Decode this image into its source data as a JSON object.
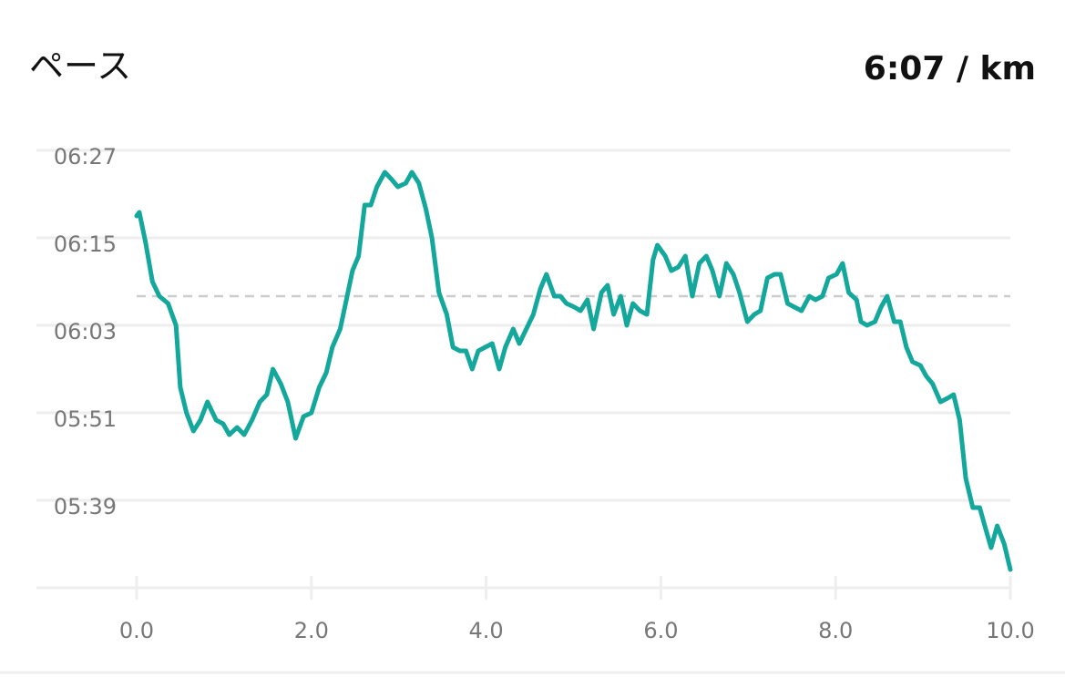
{
  "chart_data": {
    "type": "line",
    "title": "ペース",
    "summary": "6:07 / km",
    "average": 367,
    "color": "#14a79b",
    "grid": true,
    "xlim": [
      0,
      10
    ],
    "xticks": [
      {
        "value": 0,
        "label": "0.0"
      },
      {
        "value": 2,
        "label": "2.0"
      },
      {
        "value": 4,
        "label": "4.0"
      },
      {
        "value": 6,
        "label": "6.0"
      },
      {
        "value": 8,
        "label": "8.0"
      },
      {
        "value": 10,
        "label": "10.0"
      }
    ],
    "ylim": [
      327,
      390
    ],
    "yticks": [
      {
        "value": 339,
        "label": "05:39"
      },
      {
        "value": 351,
        "label": "05:51"
      },
      {
        "value": 363,
        "label": "06:03"
      },
      {
        "value": 375,
        "label": "06:15"
      },
      {
        "value": 387,
        "label": "06:27"
      }
    ],
    "x": [
      0,
      0.03,
      0.1,
      0.18,
      0.26,
      0.36,
      0.45,
      0.5,
      0.57,
      0.65,
      0.73,
      0.81,
      0.91,
      0.99,
      1.06,
      1.15,
      1.23,
      1.32,
      1.41,
      1.49,
      1.56,
      1.65,
      1.73,
      1.82,
      1.91,
      2.0,
      2.09,
      2.17,
      2.24,
      2.33,
      2.4,
      2.47,
      2.54,
      2.61,
      2.68,
      2.75,
      2.84,
      2.92,
      2.99,
      3.08,
      3.15,
      3.23,
      3.31,
      3.38,
      3.46,
      3.55,
      3.62,
      3.7,
      3.77,
      3.84,
      3.91,
      3.99,
      4.07,
      4.15,
      4.22,
      4.31,
      4.38,
      4.46,
      4.54,
      4.62,
      4.69,
      4.78,
      4.85,
      4.92,
      5.01,
      5.08,
      5.16,
      5.23,
      5.32,
      5.39,
      5.46,
      5.54,
      5.61,
      5.68,
      5.76,
      5.84,
      5.91,
      5.96,
      6.05,
      6.12,
      6.2,
      6.28,
      6.36,
      6.44,
      6.52,
      6.59,
      6.67,
      6.75,
      6.83,
      6.9,
      6.99,
      7.07,
      7.14,
      7.22,
      7.3,
      7.37,
      7.45,
      7.53,
      7.61,
      7.7,
      7.77,
      7.85,
      7.92,
      8.01,
      8.08,
      8.15,
      8.24,
      8.29,
      8.36,
      8.45,
      8.52,
      8.59,
      8.67,
      8.74,
      8.81,
      8.88,
      8.97,
      9.04,
      9.11,
      9.2,
      9.28,
      9.35,
      9.42,
      9.49,
      9.57,
      9.65,
      9.72,
      9.78,
      9.85,
      9.93,
      10.0
    ],
    "values": [
      378,
      378.5,
      374.5,
      369,
      367,
      366,
      363,
      354.5,
      351,
      348.5,
      350,
      352.5,
      350,
      349.5,
      348,
      349,
      348,
      350,
      352.5,
      353.5,
      357,
      355,
      352.5,
      347.5,
      350.5,
      351,
      354.5,
      356.5,
      360,
      362.5,
      366.5,
      370.5,
      372.5,
      379.5,
      379.5,
      382,
      384,
      383,
      382,
      382.5,
      384,
      382.5,
      379,
      375,
      367.5,
      364.5,
      360,
      359.5,
      359.5,
      357,
      359.5,
      360,
      360.5,
      357,
      360,
      362.5,
      360.5,
      362.5,
      364.5,
      368,
      370,
      367,
      367,
      366,
      365.5,
      365,
      366.5,
      362.5,
      367.5,
      368.5,
      364.5,
      367,
      363,
      366,
      365,
      364.5,
      372,
      374,
      372.5,
      370.5,
      371,
      372.5,
      367,
      371.5,
      372.5,
      370.5,
      367,
      371.5,
      370,
      367.5,
      363.5,
      364.5,
      365,
      369.5,
      370,
      370,
      366,
      365.5,
      365,
      367,
      366.5,
      367,
      369.5,
      370,
      371.5,
      367.5,
      366.5,
      363.5,
      363,
      363.5,
      365.5,
      367,
      363.5,
      363.5,
      360,
      358,
      357.5,
      356,
      355,
      352.5,
      353,
      353.5,
      350,
      342,
      338,
      338,
      335,
      332.5,
      335.5,
      333,
      329.5
    ]
  }
}
